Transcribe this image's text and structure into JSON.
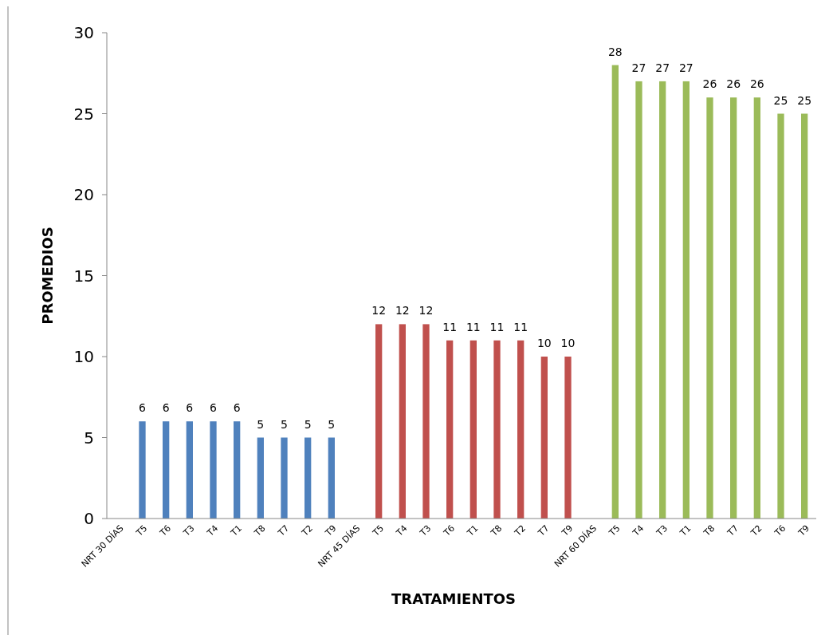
{
  "chart_data": {
    "type": "bar",
    "xlabel": "TRATAMIENTOS",
    "ylabel": "PROMEDIOS",
    "categories": [
      "NRT 30 DÍAS",
      "T5",
      "T6",
      "T3",
      "T4",
      "T1",
      "T8",
      "T7",
      "T2",
      "T9",
      "NRT 45 DÍAS",
      "T5",
      "T4",
      "T3",
      "T6",
      "T1",
      "T8",
      "T2",
      "T7",
      "T9",
      "NRT 60 DÍAS",
      "T5",
      "T4",
      "T3",
      "T1",
      "T8",
      "T7",
      "T2",
      "T6",
      "T9"
    ],
    "values": [
      null,
      6,
      6,
      6,
      6,
      6,
      5,
      5,
      5,
      5,
      null,
      12,
      12,
      12,
      11,
      11,
      11,
      11,
      10,
      10,
      null,
      28,
      27,
      27,
      27,
      26,
      26,
      26,
      25,
      25
    ],
    "colors": [
      null,
      "#4f81bd",
      "#4f81bd",
      "#4f81bd",
      "#4f81bd",
      "#4f81bd",
      "#4f81bd",
      "#4f81bd",
      "#4f81bd",
      "#4f81bd",
      null,
      "#c0504d",
      "#c0504d",
      "#c0504d",
      "#c0504d",
      "#c0504d",
      "#c0504d",
      "#c0504d",
      "#c0504d",
      "#c0504d",
      null,
      "#9bbb59",
      "#9bbb59",
      "#9bbb59",
      "#9bbb59",
      "#9bbb59",
      "#9bbb59",
      "#9bbb59",
      "#9bbb59",
      "#9bbb59"
    ],
    "ylim": [
      0,
      30
    ],
    "yticks": [
      0,
      5,
      10,
      15,
      20,
      25,
      30
    ],
    "grid": false,
    "data_labels": true
  }
}
